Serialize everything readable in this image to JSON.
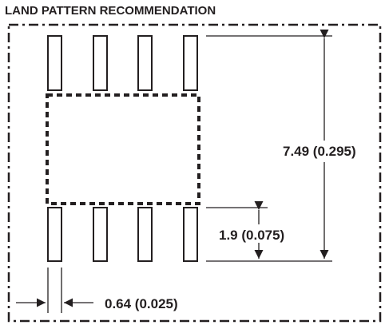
{
  "title": "LAND PATTERN RECOMMENDATION",
  "dimensions": {
    "overall_height": "7.49 (0.295)",
    "pad_length": "1.9 (0.075)",
    "pad_width": "0.64 (0.025)"
  },
  "colors": {
    "ink": "#231f20"
  }
}
